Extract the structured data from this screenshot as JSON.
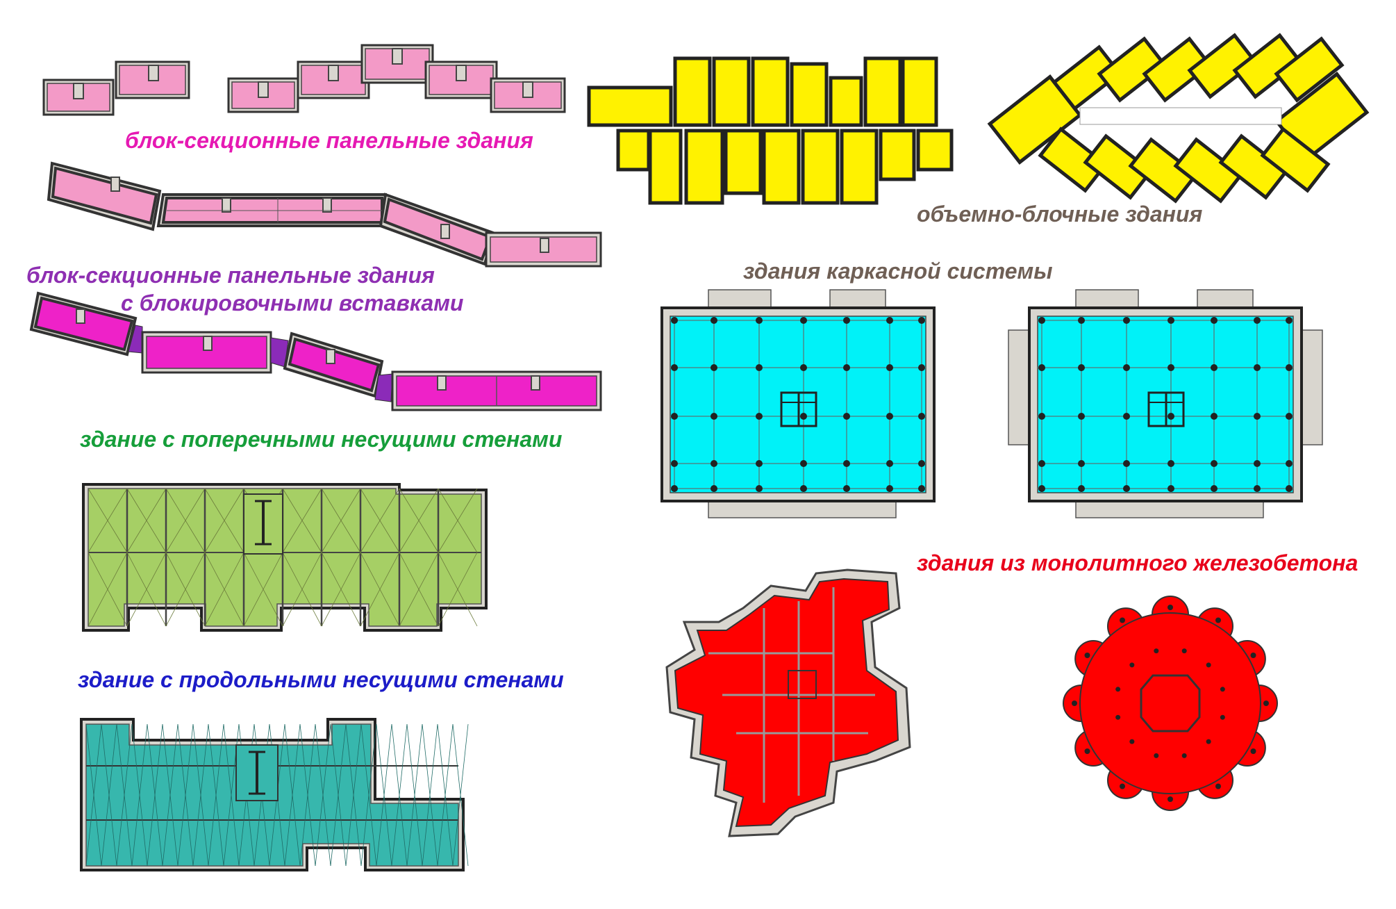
{
  "colors": {
    "pink": "#f39ac7",
    "magenta": "#ee22c8",
    "insert_purple": "#8b2bb8",
    "yellow": "#fff200",
    "green": "#a6cf65",
    "teal": "#37b7ad",
    "cyan": "#00f2f8",
    "red": "#ff0000",
    "wall_grey": "#d9d6cf",
    "label_pink": "#e619b3",
    "label_purple": "#8e2fb2",
    "label_green": "#169e3a",
    "label_blue": "#1c1cc8",
    "label_brown": "#6f5f55",
    "label_red": "#e8001b"
  },
  "labels": {
    "block_section_panel": "блок-секционные панельные здания",
    "block_section_inserts_1": "блок-секционные панельные здания",
    "block_section_inserts_2": "с блокировочными вставками",
    "cross_walls": "здание с поперечными несущими стенами",
    "longitudinal_walls": "здание с продольными несущими стенами",
    "volume_block": "объемно-блочные здания",
    "frame_system": "здания каркасной системы",
    "monolithic": "здания из монолитного железобетона"
  }
}
